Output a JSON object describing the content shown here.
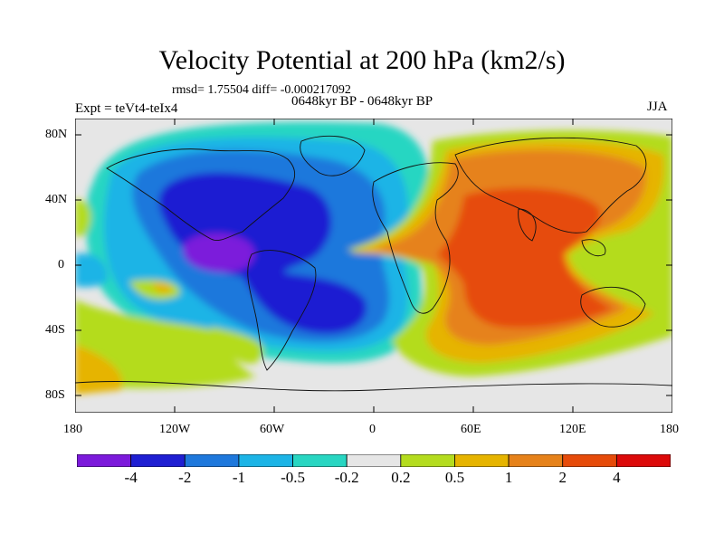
{
  "title": "Velocity Potential at 200 hPa (km2/s)",
  "stats": "rmsd= 1.75504 diff= -0.000217092",
  "left_label": "Expt = teVt4-teIx4",
  "center_label": "0648kyr BP - 0648kyr BP",
  "right_label": "JJA",
  "map": {
    "projection": "cylindrical equidistant",
    "lon_range": [
      -180,
      180
    ],
    "lat_range": [
      -90,
      90
    ],
    "lon_ticks": [
      "180",
      "120W",
      "60W",
      "0",
      "60E",
      "120E",
      "180"
    ],
    "lat_ticks": [
      "80N",
      "40N",
      "0",
      "40S",
      "80S"
    ]
  },
  "colorbar": {
    "labels": [
      "-4",
      "-2",
      "-1",
      "-0.5",
      "-0.2",
      "0.2",
      "0.5",
      "1",
      "2",
      "4"
    ],
    "colors": [
      "#7c1adb",
      "#1f1fd2",
      "#1e78dc",
      "#1cb4e6",
      "#28d6c2",
      "#e6e6e6",
      "#b4dc1e",
      "#e6b400",
      "#e6821a",
      "#e64b0a",
      "#dc0a0a"
    ]
  }
}
